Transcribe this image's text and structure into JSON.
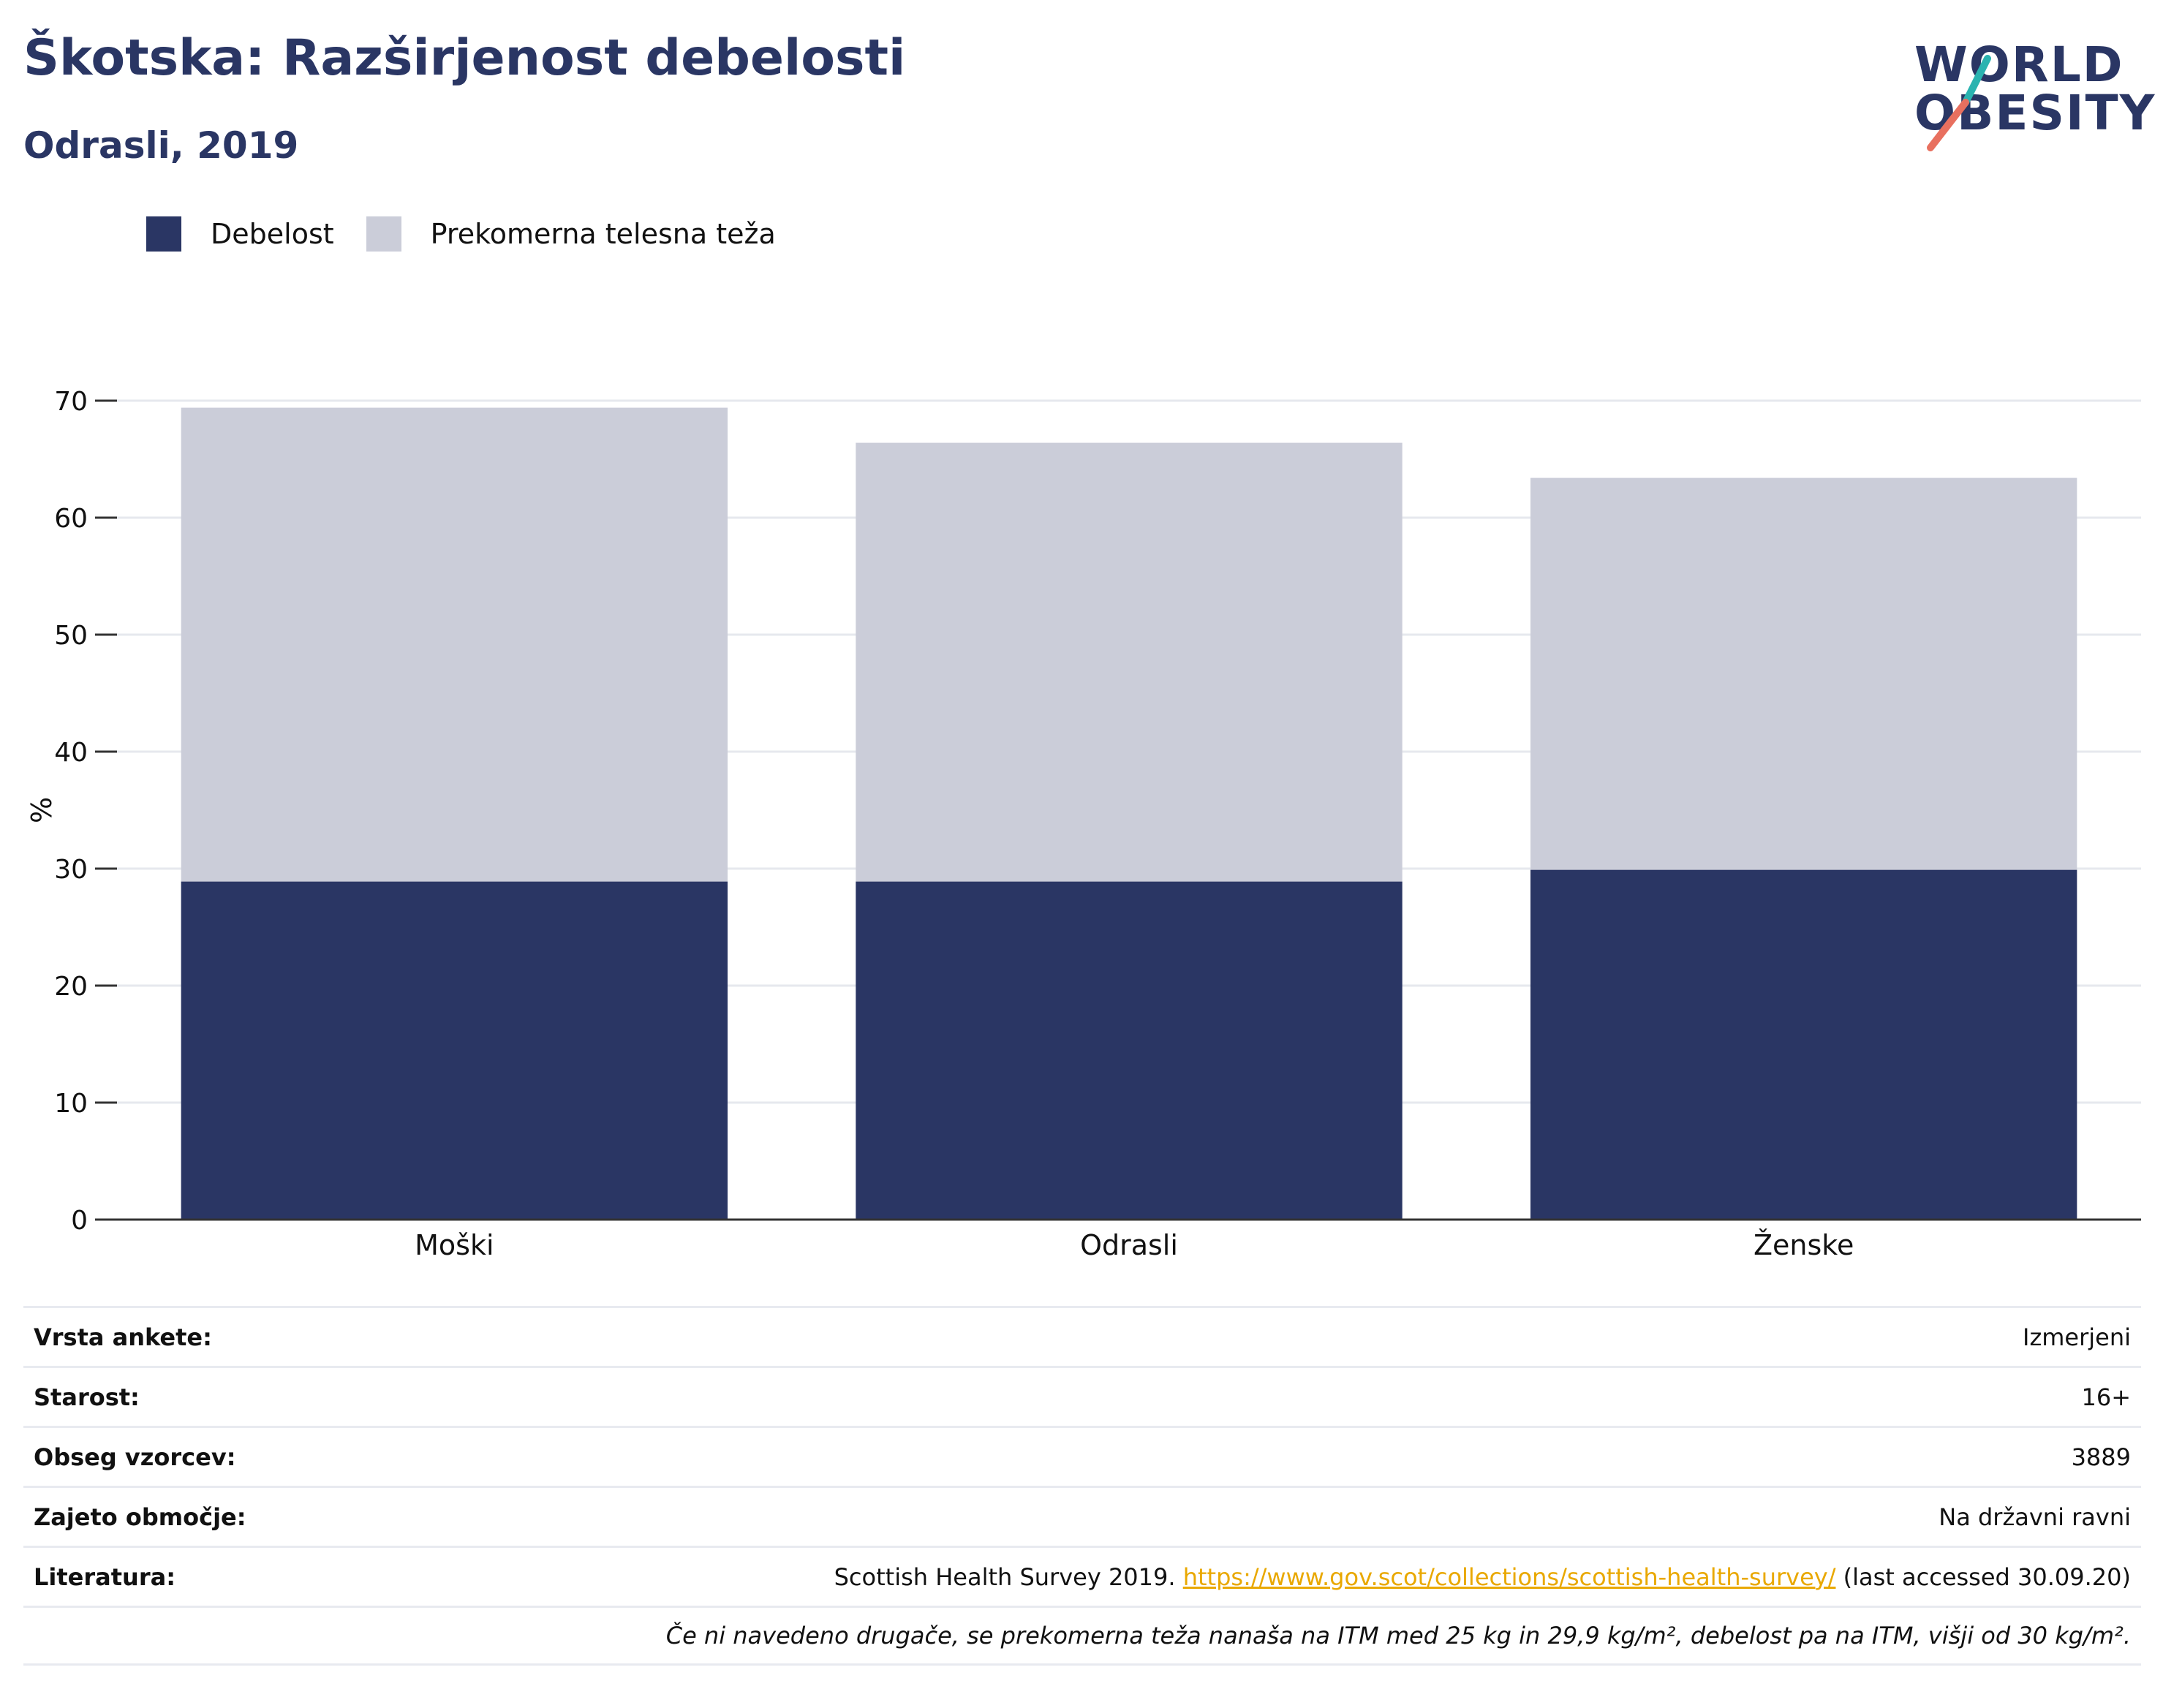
{
  "header": {
    "title": "Škotska: Razširjenost debelosti",
    "subtitle": "Odrasli, 2019"
  },
  "logo": {
    "line1": "WORLD",
    "line2": "OBESITY",
    "accent_teal": "#2ab3b0",
    "accent_coral": "#e8705f"
  },
  "colors": {
    "obesity": "#2a3664",
    "overweight": "#cbcdd9",
    "text_dark": "#2a3664",
    "link": "#e9a800"
  },
  "chart_data": {
    "type": "bar",
    "stacked": true,
    "categories": [
      "Moški",
      "Odrasli",
      "Ženske"
    ],
    "series": [
      {
        "name": "Debelost",
        "values": [
          28.9,
          28.9,
          29.9
        ],
        "color": "#2a3664"
      },
      {
        "name": "Prekomerna telesna teža",
        "values": [
          40.5,
          37.5,
          33.5
        ],
        "color": "#cbcdd9"
      }
    ],
    "ylabel": "%",
    "ylim": [
      0,
      70
    ],
    "yticks": [
      0,
      10,
      20,
      30,
      40,
      50,
      60,
      70
    ],
    "grid": true,
    "legend_position": "top-left"
  },
  "info": {
    "rows": [
      {
        "label": "Vrsta ankete:",
        "value": "Izmerjeni"
      },
      {
        "label": "Starost:",
        "value": "16+"
      },
      {
        "label": "Obseg vzorcev:",
        "value": "3889"
      },
      {
        "label": "Zajeto območje:",
        "value": "Na državni ravni"
      }
    ],
    "reference": {
      "label": "Literatura:",
      "prefix": "Scottish Health Survey 2019. ",
      "link": "https://www.gov.scot/collections/scottish-health-survey/",
      "suffix": " (last accessed 30.09.20)"
    },
    "note": "Če ni navedeno drugače, se prekomerna teža nanaša na ITM med 25 kg in 29,9 kg/m², debelost pa na ITM, višji od 30 kg/m²."
  }
}
